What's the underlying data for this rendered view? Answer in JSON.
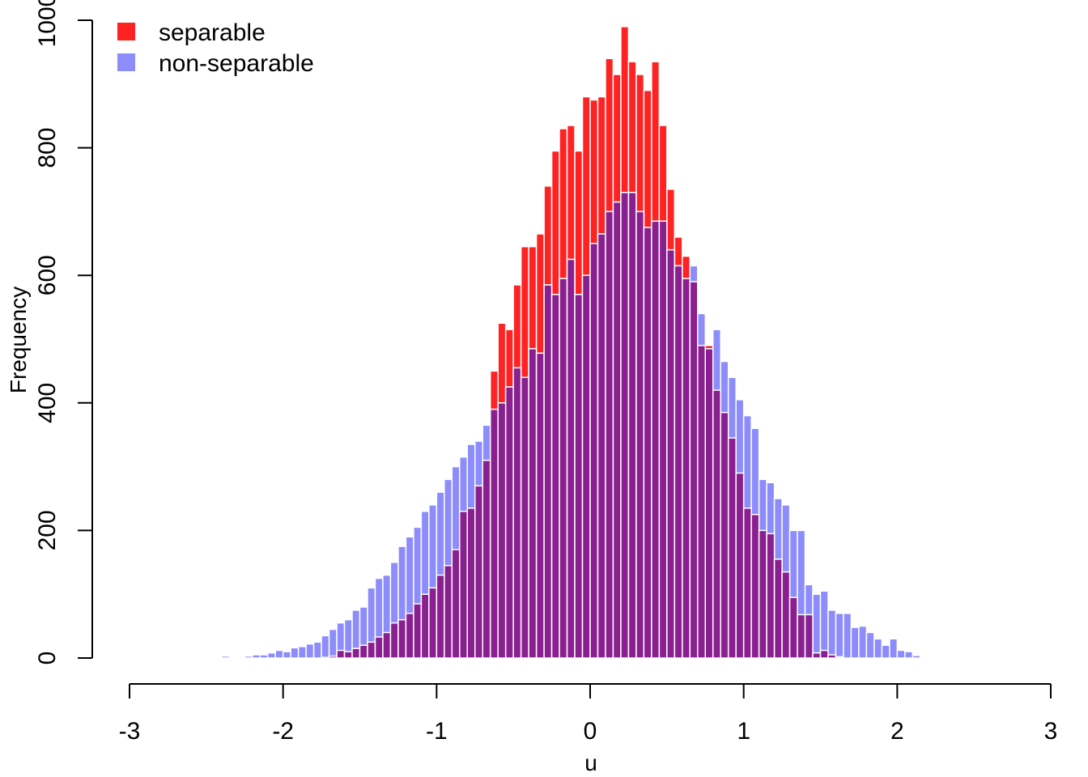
{
  "chart_data": {
    "type": "bar",
    "subtype": "overlaid-histogram",
    "xlabel": "u",
    "ylabel": "Frequency",
    "xlim": [
      -3,
      3
    ],
    "ylim": [
      0,
      1000
    ],
    "xticks": [
      "-3",
      "-2",
      "-1",
      "0",
      "1",
      "2",
      "3"
    ],
    "yticks": [
      "0",
      "200",
      "400",
      "600",
      "800",
      "1000"
    ],
    "bin_width": 0.05,
    "legend_position": "top-left",
    "legend": [
      {
        "label": "separable",
        "color": "#ff2222"
      },
      {
        "label": "non-separable",
        "color": "#8c8cfa"
      }
    ],
    "overlap_color": "#8a2090",
    "series": [
      {
        "name": "separable",
        "color": "#ff2222",
        "bins": [
          [
            -1.75,
            1
          ],
          [
            -1.7,
            3
          ],
          [
            -1.65,
            12
          ],
          [
            -1.6,
            10
          ],
          [
            -1.55,
            15
          ],
          [
            -1.5,
            20
          ],
          [
            -1.45,
            25
          ],
          [
            -1.4,
            33
          ],
          [
            -1.35,
            40
          ],
          [
            -1.3,
            55
          ],
          [
            -1.25,
            60
          ],
          [
            -1.2,
            70
          ],
          [
            -1.15,
            85
          ],
          [
            -1.1,
            100
          ],
          [
            -1.05,
            110
          ],
          [
            -1.0,
            130
          ],
          [
            -0.95,
            145
          ],
          [
            -0.9,
            170
          ],
          [
            -0.85,
            230
          ],
          [
            -0.8,
            235
          ],
          [
            -0.75,
            270
          ],
          [
            -0.7,
            310
          ],
          [
            -0.65,
            450
          ],
          [
            -0.6,
            525
          ],
          [
            -0.55,
            515
          ],
          [
            -0.5,
            585
          ],
          [
            -0.45,
            645
          ],
          [
            -0.4,
            645
          ],
          [
            -0.35,
            665
          ],
          [
            -0.3,
            740
          ],
          [
            -0.25,
            795
          ],
          [
            -0.2,
            830
          ],
          [
            -0.15,
            835
          ],
          [
            -0.1,
            795
          ],
          [
            -0.05,
            880
          ],
          [
            0.0,
            875
          ],
          [
            0.05,
            880
          ],
          [
            0.1,
            940
          ],
          [
            0.15,
            915
          ],
          [
            0.2,
            990
          ],
          [
            0.25,
            935
          ],
          [
            0.3,
            915
          ],
          [
            0.35,
            890
          ],
          [
            0.4,
            935
          ],
          [
            0.45,
            835
          ],
          [
            0.5,
            735
          ],
          [
            0.55,
            660
          ],
          [
            0.6,
            630
          ],
          [
            0.65,
            590
          ],
          [
            0.7,
            490
          ],
          [
            0.75,
            490
          ],
          [
            0.8,
            420
          ],
          [
            0.85,
            385
          ],
          [
            0.9,
            345
          ],
          [
            0.95,
            290
          ],
          [
            1.0,
            235
          ],
          [
            1.05,
            225
          ],
          [
            1.1,
            200
          ],
          [
            1.15,
            195
          ],
          [
            1.2,
            155
          ],
          [
            1.25,
            135
          ],
          [
            1.3,
            95
          ],
          [
            1.35,
            68
          ],
          [
            1.4,
            68
          ],
          [
            1.45,
            8
          ],
          [
            1.5,
            12
          ],
          [
            1.55,
            5
          ],
          [
            1.6,
            2
          ]
        ]
      },
      {
        "name": "non-separable",
        "color": "#8c8cfa",
        "bins": [
          [
            -2.4,
            3
          ],
          [
            -2.25,
            3
          ],
          [
            -2.2,
            5
          ],
          [
            -2.15,
            5
          ],
          [
            -2.1,
            8
          ],
          [
            -2.05,
            12
          ],
          [
            -2.0,
            10
          ],
          [
            -1.95,
            16
          ],
          [
            -1.9,
            18
          ],
          [
            -1.85,
            22
          ],
          [
            -1.8,
            25
          ],
          [
            -1.75,
            35
          ],
          [
            -1.7,
            45
          ],
          [
            -1.65,
            55
          ],
          [
            -1.6,
            60
          ],
          [
            -1.55,
            75
          ],
          [
            -1.5,
            80
          ],
          [
            -1.45,
            110
          ],
          [
            -1.4,
            125
          ],
          [
            -1.35,
            130
          ],
          [
            -1.3,
            150
          ],
          [
            -1.25,
            175
          ],
          [
            -1.2,
            190
          ],
          [
            -1.15,
            205
          ],
          [
            -1.1,
            230
          ],
          [
            -1.05,
            240
          ],
          [
            -1.0,
            260
          ],
          [
            -0.95,
            280
          ],
          [
            -0.9,
            300
          ],
          [
            -0.85,
            315
          ],
          [
            -0.8,
            335
          ],
          [
            -0.75,
            340
          ],
          [
            -0.7,
            365
          ],
          [
            -0.65,
            390
          ],
          [
            -0.6,
            400
          ],
          [
            -0.55,
            425
          ],
          [
            -0.5,
            455
          ],
          [
            -0.45,
            440
          ],
          [
            -0.4,
            485
          ],
          [
            -0.35,
            478
          ],
          [
            -0.3,
            585
          ],
          [
            -0.25,
            570
          ],
          [
            -0.2,
            595
          ],
          [
            -0.15,
            625
          ],
          [
            -0.1,
            570
          ],
          [
            -0.05,
            600
          ],
          [
            0.0,
            650
          ],
          [
            0.05,
            665
          ],
          [
            0.1,
            700
          ],
          [
            0.15,
            715
          ],
          [
            0.2,
            730
          ],
          [
            0.25,
            730
          ],
          [
            0.3,
            700
          ],
          [
            0.35,
            675
          ],
          [
            0.4,
            685
          ],
          [
            0.45,
            685
          ],
          [
            0.5,
            640
          ],
          [
            0.55,
            615
          ],
          [
            0.6,
            595
          ],
          [
            0.65,
            615
          ],
          [
            0.7,
            540
          ],
          [
            0.75,
            485
          ],
          [
            0.8,
            515
          ],
          [
            0.85,
            465
          ],
          [
            0.9,
            440
          ],
          [
            0.95,
            405
          ],
          [
            1.0,
            380
          ],
          [
            1.05,
            360
          ],
          [
            1.1,
            280
          ],
          [
            1.15,
            275
          ],
          [
            1.2,
            250
          ],
          [
            1.25,
            240
          ],
          [
            1.3,
            200
          ],
          [
            1.35,
            200
          ],
          [
            1.4,
            115
          ],
          [
            1.45,
            100
          ],
          [
            1.5,
            105
          ],
          [
            1.55,
            75
          ],
          [
            1.6,
            70
          ],
          [
            1.65,
            70
          ],
          [
            1.7,
            48
          ],
          [
            1.75,
            50
          ],
          [
            1.8,
            40
          ],
          [
            1.85,
            30
          ],
          [
            1.9,
            20
          ],
          [
            1.95,
            30
          ],
          [
            2.0,
            12
          ],
          [
            2.05,
            10
          ],
          [
            2.1,
            4
          ]
        ]
      }
    ]
  }
}
